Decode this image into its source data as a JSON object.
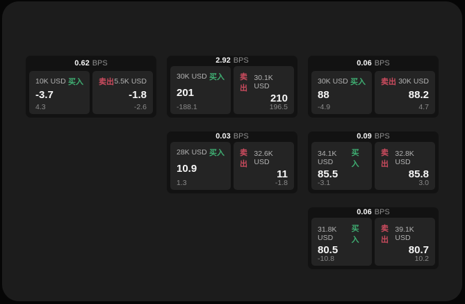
{
  "labels": {
    "buy": "买入",
    "sell": "卖出",
    "bps": "BPS"
  },
  "colors": {
    "buy_green": "#3fae72",
    "sell_red": "#cb4b5e",
    "window_bg": "#1c1c1c",
    "card_bg": "#121212",
    "tile_bg": "#242424"
  },
  "cards": [
    {
      "bps": "0.62",
      "buy": {
        "amount": "10K USD",
        "value": "-3.7",
        "sub": "4.3"
      },
      "sell": {
        "amount": "5.5K USD",
        "value": "-1.8",
        "sub": "-2.6"
      }
    },
    {
      "bps": "2.92",
      "buy": {
        "amount": "30K USD",
        "value": "201",
        "sub": "-188.1"
      },
      "sell": {
        "amount": "30.1K USD",
        "value": "210",
        "sub": "196.5"
      }
    },
    {
      "bps": "0.06",
      "buy": {
        "amount": "30K USD",
        "value": "88",
        "sub": "-4.9"
      },
      "sell": {
        "amount": "30K USD",
        "value": "88.2",
        "sub": "4.7"
      }
    },
    {
      "bps": "0.03",
      "buy": {
        "amount": "28K USD",
        "value": "10.9",
        "sub": "1.3"
      },
      "sell": {
        "amount": "32.6K USD",
        "value": "11",
        "sub": "-1.8"
      }
    },
    {
      "bps": "0.09",
      "buy": {
        "amount": "34.1K USD",
        "value": "85.5",
        "sub": "-3.1"
      },
      "sell": {
        "amount": "32.8K USD",
        "value": "85.8",
        "sub": "3.0"
      }
    },
    {
      "bps": "0.06",
      "buy": {
        "amount": "31.8K USD",
        "value": "80.5",
        "sub": "-10.8"
      },
      "sell": {
        "amount": "39.1K USD",
        "value": "80.7",
        "sub": "10.2"
      }
    }
  ]
}
